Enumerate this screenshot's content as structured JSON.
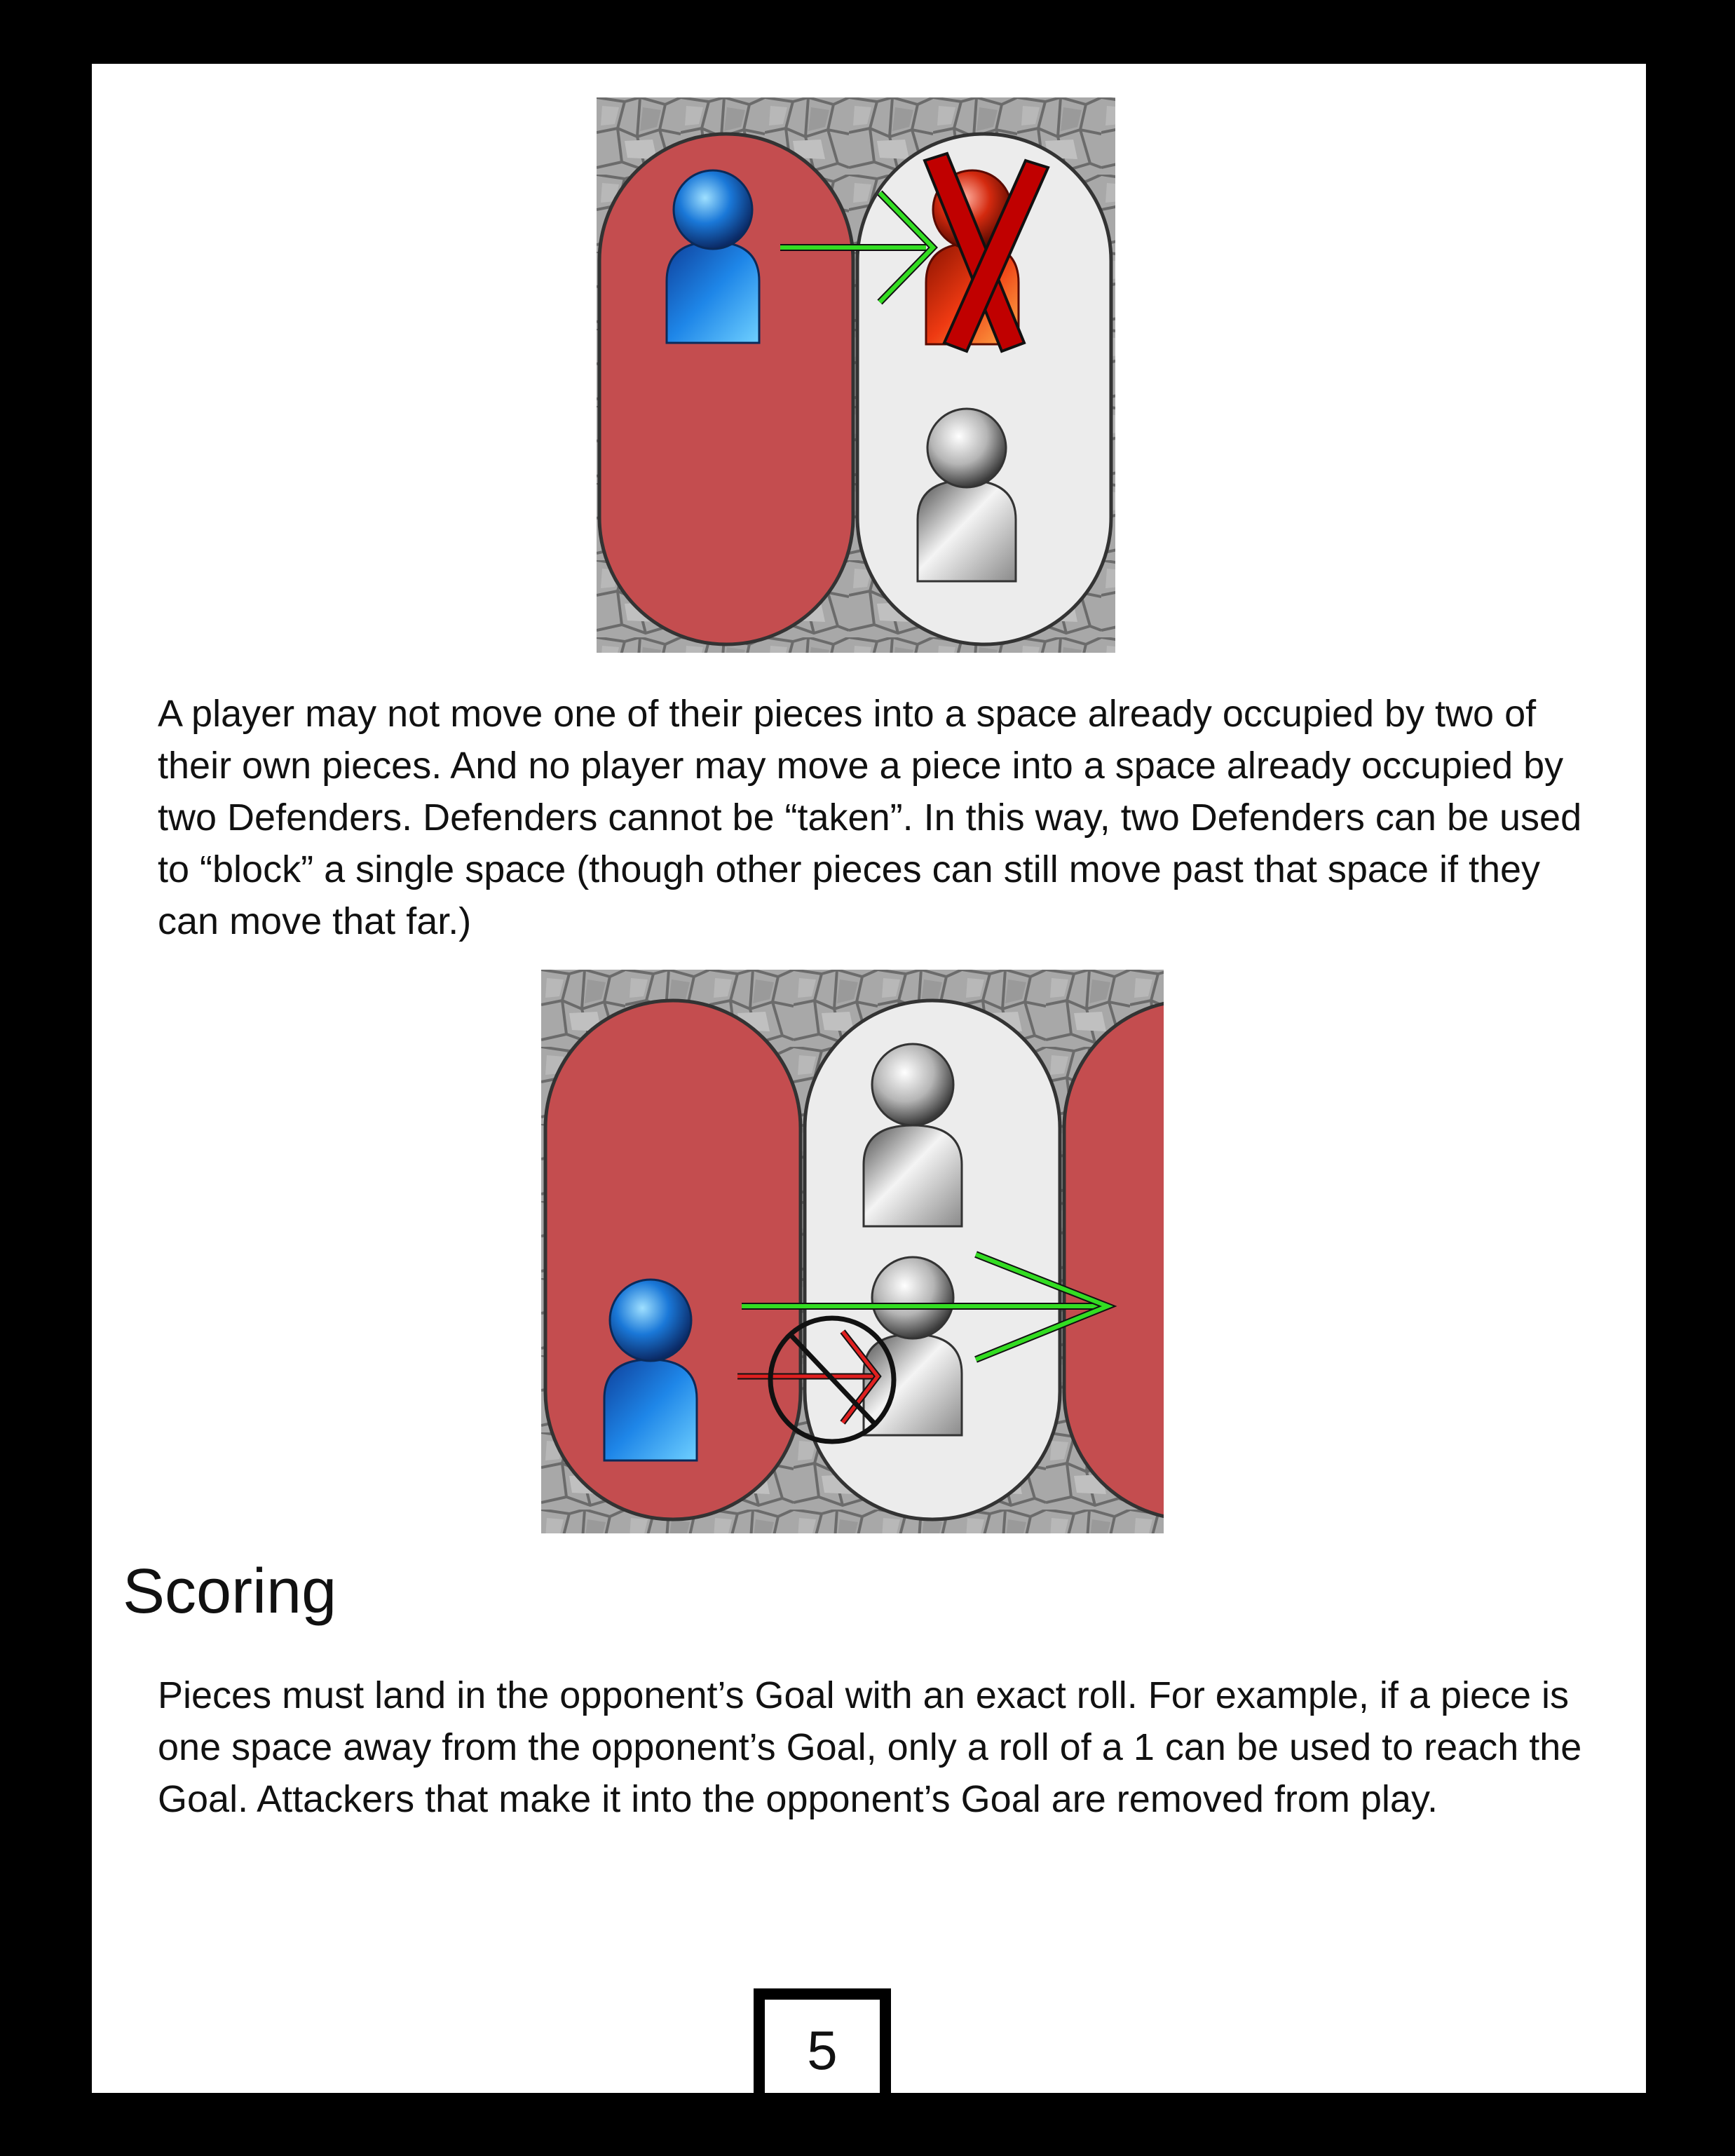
{
  "paragraph_1": "A player may not move one of their pieces into a space already occupied by two of their own pieces. And no player may move a piece into a space already occupied by two Defenders. Defenders cannot be “taken”. In this way, two Defenders can be used to “block” a single space (though other pieces can still move past that space if they can move that far.)",
  "section_heading": "Scoring",
  "paragraph_2": "Pieces must land in the opponent’s Goal with an exact roll. For example, if a piece is one space away from the opponent’s Goal, only a roll of a 1 can be used to reach the Goal. Attackers that make it into the opponent’s Goal are removed from play.",
  "page_number": "5",
  "colors": {
    "board_red": "#c44d4f",
    "board_white": "#ececec",
    "stone_grey": "#a9a9a9",
    "attacker_blue": "#1a78d8",
    "attacker_red": "#d42a0f",
    "defender_clear": "#d8d8d8",
    "arrow_allowed": "#33dd22",
    "arrow_blocked": "#e02020"
  },
  "icons": {
    "figure_1": [
      "blue-attacker-icon",
      "red-attacker-icon",
      "defender-icon",
      "green-arrow-icon",
      "red-x-icon"
    ],
    "figure_2": [
      "blue-attacker-icon",
      "defender-icon",
      "defender-icon",
      "green-arrow-icon",
      "red-arrow-icon",
      "prohibited-circle-icon"
    ]
  }
}
